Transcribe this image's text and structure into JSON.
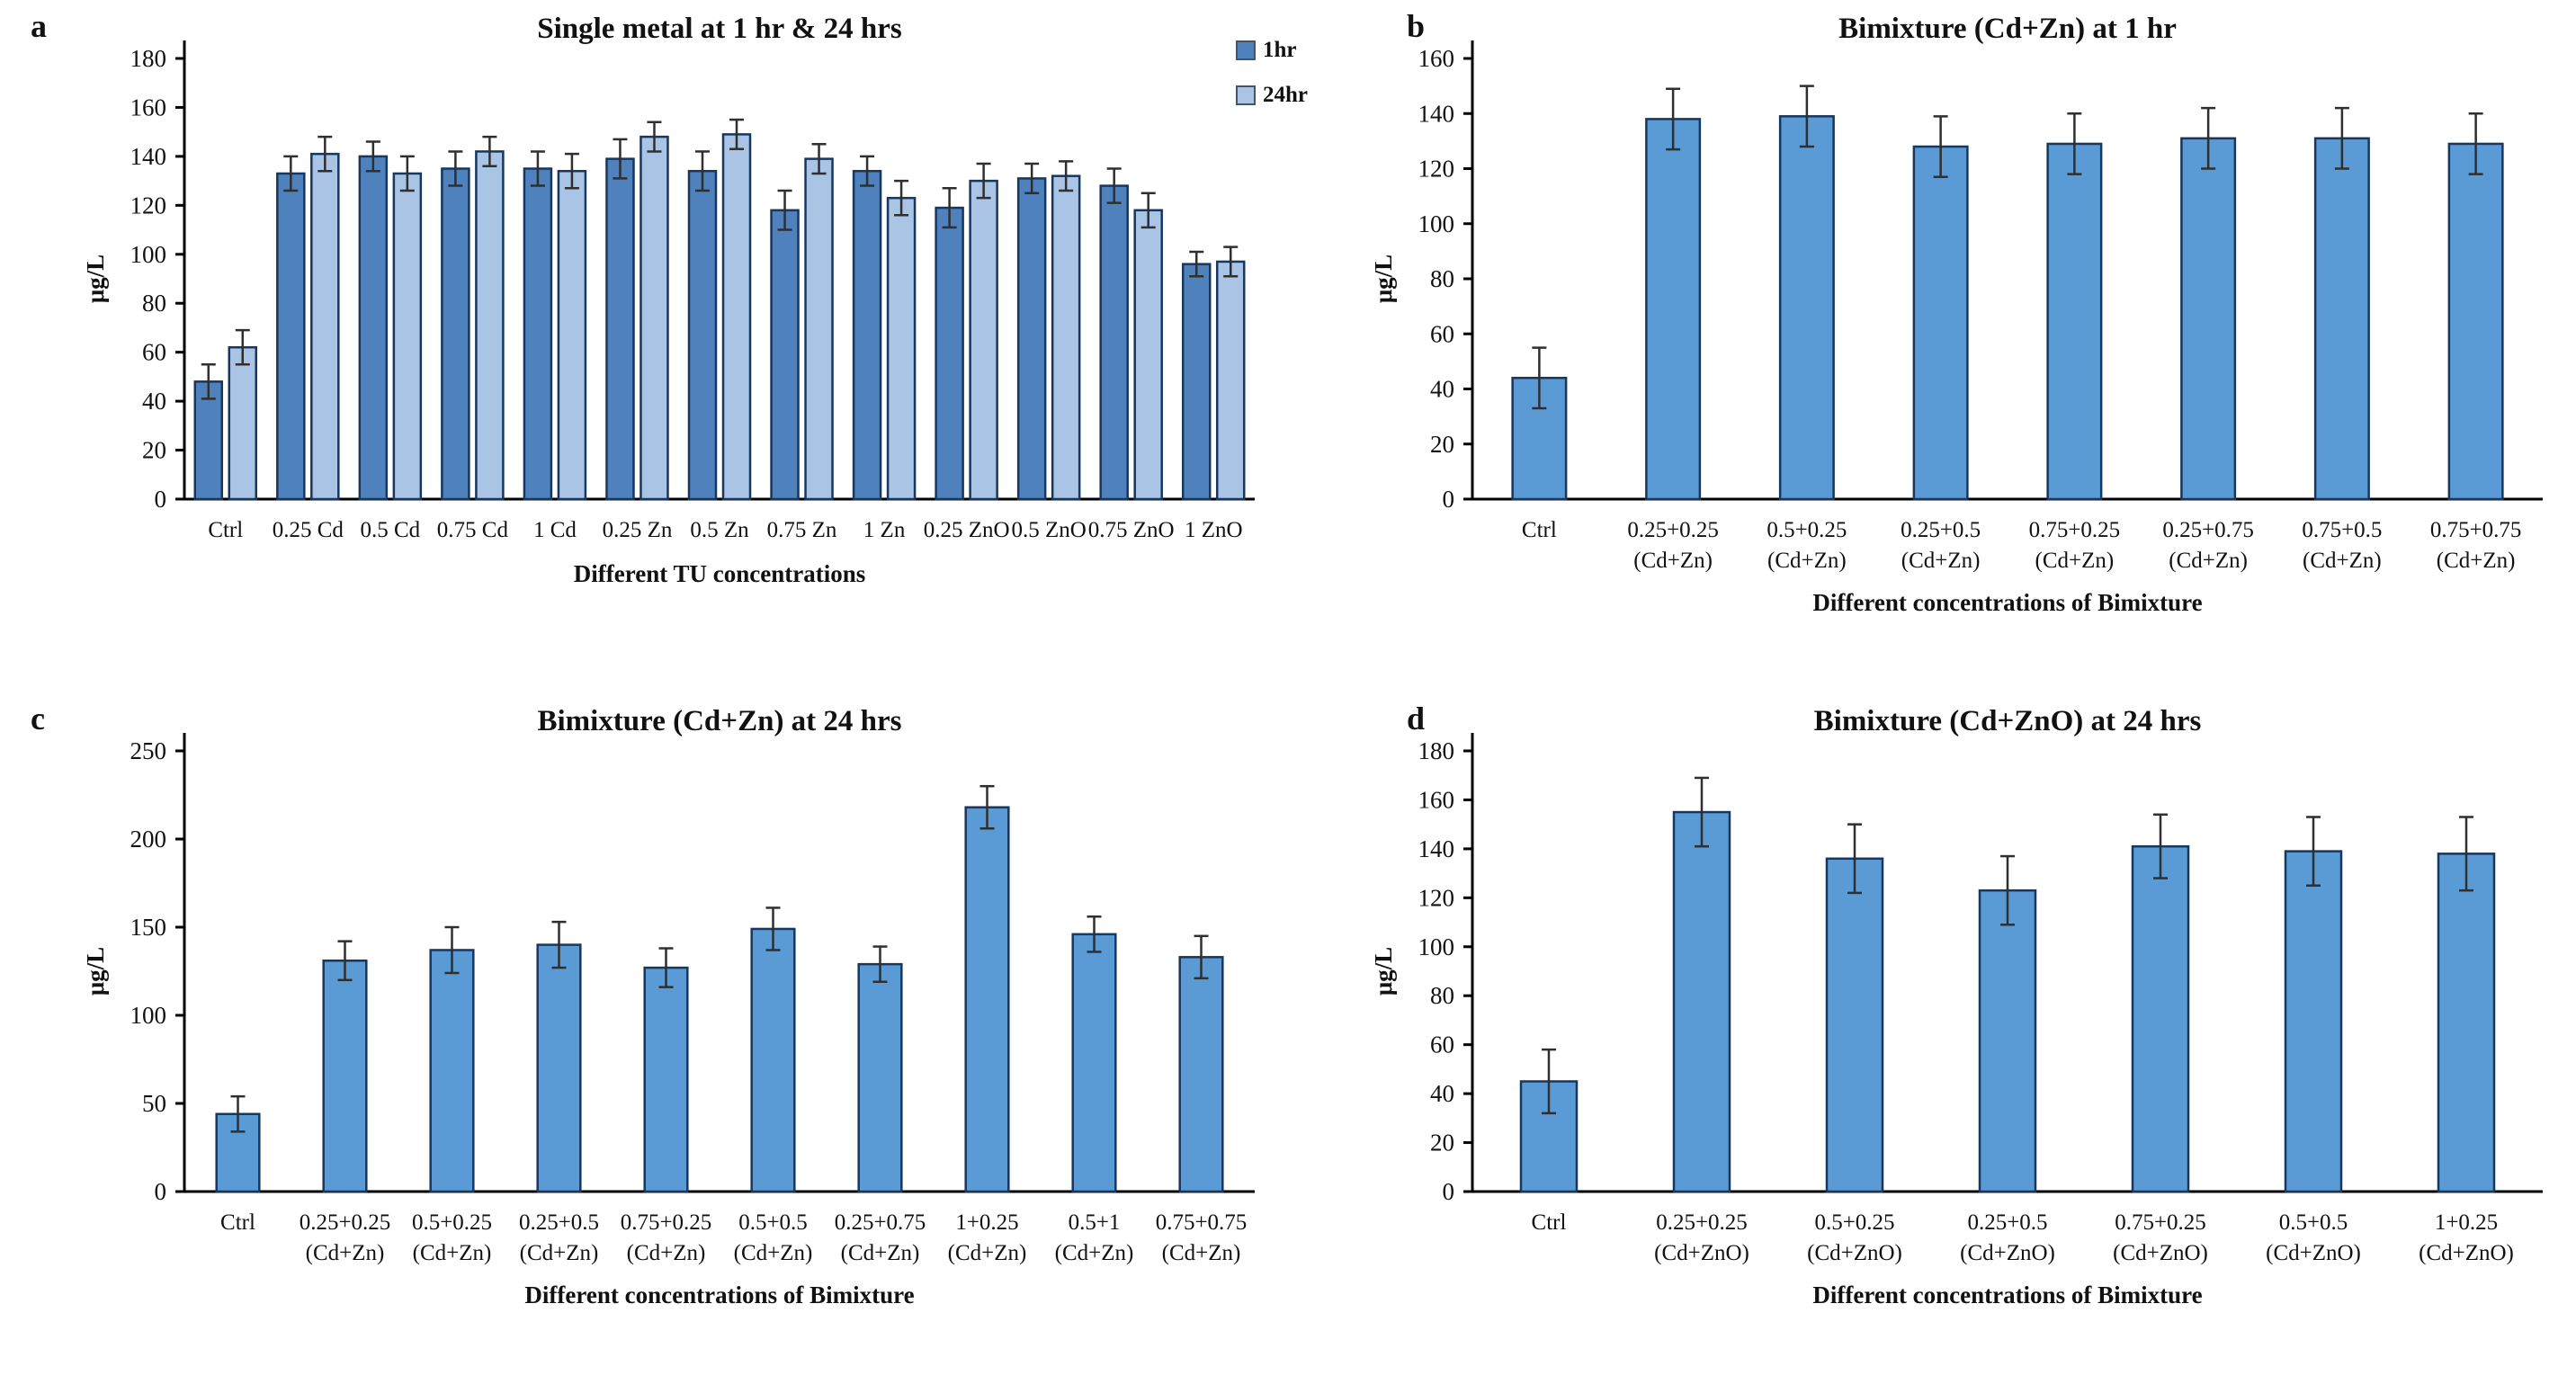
{
  "figure": {
    "background": "#ffffff",
    "text_color": "#111111",
    "bar_border_color": "#17375e",
    "error_bar_color": "#2f2f2f"
  },
  "chart_data": [
    {
      "type": "bar",
      "panel_letter": "a",
      "title": "Single metal at 1 hr & 24 hrs",
      "xlabel": "Different TU concentrations",
      "ylabel": "μg/L",
      "ylim": [
        0,
        180
      ],
      "yticks": [
        0,
        20,
        40,
        60,
        80,
        100,
        120,
        140,
        160,
        180
      ],
      "grid": false,
      "legend_position": "top-right",
      "categories": [
        {
          "label": "Ctrl"
        },
        {
          "label": "0.25 Cd"
        },
        {
          "label": "0.5 Cd"
        },
        {
          "label": "0.75 Cd"
        },
        {
          "label": "1 Cd"
        },
        {
          "label": "0.25 Zn"
        },
        {
          "label": "0.5 Zn"
        },
        {
          "label": "0.75 Zn"
        },
        {
          "label": "1 Zn"
        },
        {
          "label": "0.25 ZnO"
        },
        {
          "label": "0.5 ZnO"
        },
        {
          "label": "0.75 ZnO"
        },
        {
          "label": "1 ZnO"
        }
      ],
      "series": [
        {
          "name": "1hr",
          "color": "#4f81bd",
          "values": [
            48,
            133,
            140,
            135,
            135,
            139,
            134,
            118,
            134,
            119,
            131,
            128,
            96
          ],
          "errors": [
            7,
            7,
            6,
            7,
            7,
            8,
            8,
            8,
            6,
            8,
            6,
            7,
            5
          ]
        },
        {
          "name": "24hr",
          "color": "#a9c4e4",
          "values": [
            62,
            141,
            133,
            142,
            134,
            148,
            149,
            139,
            123,
            130,
            132,
            118,
            97
          ],
          "errors": [
            7,
            7,
            7,
            6,
            7,
            6,
            6,
            6,
            7,
            7,
            6,
            7,
            6
          ]
        }
      ]
    },
    {
      "type": "bar",
      "panel_letter": "b",
      "title": "Bimixture (Cd+Zn) at 1 hr",
      "xlabel": "Different concentrations of Bimixture",
      "ylabel": "μg/L",
      "ylim": [
        0,
        160
      ],
      "yticks": [
        0,
        20,
        40,
        60,
        80,
        100,
        120,
        140,
        160
      ],
      "grid": false,
      "categories": [
        {
          "label": "Ctrl"
        },
        {
          "label": "0.25+0.25",
          "sublabel": "(Cd+Zn)"
        },
        {
          "label": "0.5+0.25",
          "sublabel": "(Cd+Zn)"
        },
        {
          "label": "0.25+0.5",
          "sublabel": "(Cd+Zn)"
        },
        {
          "label": "0.75+0.25",
          "sublabel": "(Cd+Zn)"
        },
        {
          "label": "0.25+0.75",
          "sublabel": "(Cd+Zn)"
        },
        {
          "label": "0.75+0.5",
          "sublabel": "(Cd+Zn)"
        },
        {
          "label": "0.75+0.75",
          "sublabel": "(Cd+Zn)"
        }
      ],
      "series": [
        {
          "name": "1hr",
          "color": "#5b9bd5",
          "values": [
            44,
            138,
            139,
            128,
            129,
            131,
            131,
            129
          ],
          "errors": [
            11,
            11,
            11,
            11,
            11,
            11,
            11,
            11
          ]
        }
      ]
    },
    {
      "type": "bar",
      "panel_letter": "c",
      "title": "Bimixture (Cd+Zn) at 24 hrs",
      "xlabel": "Different concentrations of Bimixture",
      "ylabel": "μg/L",
      "ylim": [
        0,
        250
      ],
      "yticks": [
        0,
        50,
        100,
        150,
        200,
        250
      ],
      "grid": false,
      "categories": [
        {
          "label": "Ctrl"
        },
        {
          "label": "0.25+0.25",
          "sublabel": "(Cd+Zn)"
        },
        {
          "label": "0.5+0.25",
          "sublabel": "(Cd+Zn)"
        },
        {
          "label": "0.25+0.5",
          "sublabel": "(Cd+Zn)"
        },
        {
          "label": "0.75+0.25",
          "sublabel": "(Cd+Zn)"
        },
        {
          "label": "0.5+0.5",
          "sublabel": "(Cd+Zn)"
        },
        {
          "label": "0.25+0.75",
          "sublabel": "(Cd+Zn)"
        },
        {
          "label": "1+0.25",
          "sublabel": "(Cd+Zn)"
        },
        {
          "label": "0.5+1",
          "sublabel": "(Cd+Zn)"
        },
        {
          "label": "0.75+0.75",
          "sublabel": "(Cd+Zn)"
        }
      ],
      "series": [
        {
          "name": "24hr",
          "color": "#5b9bd5",
          "values": [
            44,
            131,
            137,
            140,
            127,
            149,
            129,
            218,
            146,
            133
          ],
          "errors": [
            10,
            11,
            13,
            13,
            11,
            12,
            10,
            12,
            10,
            12
          ]
        }
      ]
    },
    {
      "type": "bar",
      "panel_letter": "d",
      "title": "Bimixture (Cd+ZnO) at 24 hrs",
      "xlabel": "Different concentrations of Bimixture",
      "ylabel": "μg/L",
      "ylim": [
        0,
        180
      ],
      "yticks": [
        0,
        20,
        40,
        60,
        80,
        100,
        120,
        140,
        160,
        180
      ],
      "grid": false,
      "categories": [
        {
          "label": "Ctrl"
        },
        {
          "label": "0.25+0.25",
          "sublabel": "(Cd+ZnO)"
        },
        {
          "label": "0.5+0.25",
          "sublabel": "(Cd+ZnO)"
        },
        {
          "label": "0.25+0.5",
          "sublabel": "(Cd+ZnO)"
        },
        {
          "label": "0.75+0.25",
          "sublabel": "(Cd+ZnO)"
        },
        {
          "label": "0.5+0.5",
          "sublabel": "(Cd+ZnO)"
        },
        {
          "label": "1+0.25",
          "sublabel": "(Cd+ZnO)"
        }
      ],
      "series": [
        {
          "name": "24hr",
          "color": "#5b9bd5",
          "values": [
            45,
            155,
            136,
            123,
            141,
            139,
            138
          ],
          "errors": [
            13,
            14,
            14,
            14,
            13,
            14,
            15
          ]
        }
      ]
    }
  ]
}
